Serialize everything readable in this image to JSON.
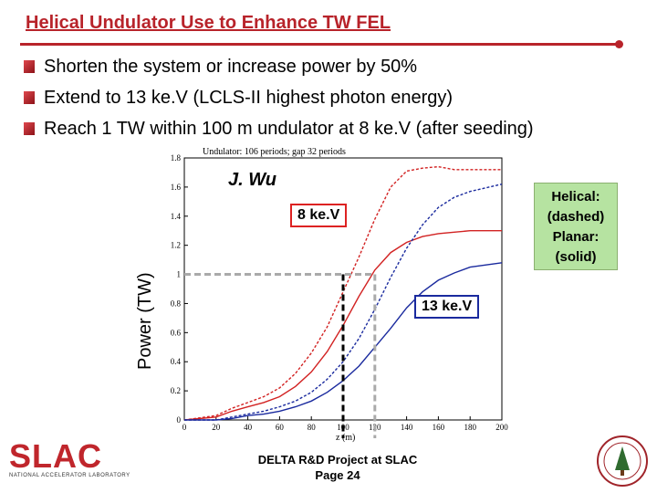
{
  "slide": {
    "title": "Helical Undulator Use to Enhance TW FEL",
    "bullets": [
      "Shorten the system or increase power by 50%",
      "Extend to 13 ke.V (LCLS-II highest photon energy)",
      "Reach 1 TW within 100 m undulator at 8 ke.V (after seeding)"
    ],
    "author": "J. Wu",
    "label_8kev": "8 ke.V",
    "label_13kev": "13 ke.V",
    "legend": [
      "Helical:",
      "(dashed)",
      "Planar:",
      "(solid)"
    ],
    "footer_line1": "DELTA R&D Project at SLAC",
    "footer_line2": "Page 24",
    "logo_text": "SLAC",
    "logo_subtext": "NATIONAL ACCELERATOR LABORATORY"
  },
  "colors": {
    "title": "#b8232a",
    "red": "#d22222",
    "blue": "#1a2a9e",
    "legend_bg": "#b6e3a1"
  },
  "chart_data": {
    "type": "line",
    "title": "Undulator: 106 periods; gap 32 periods",
    "xlabel": "z (m)",
    "ylabel": "Power (TW)",
    "xlim": [
      0,
      200
    ],
    "ylim": [
      0,
      1.8
    ],
    "xticks": [
      0,
      20,
      40,
      60,
      80,
      100,
      120,
      140,
      160,
      180,
      200
    ],
    "yticks": [
      0,
      0.2,
      0.4,
      0.6,
      0.8,
      1,
      1.2,
      1.4,
      1.6,
      1.8
    ],
    "series": [
      {
        "name": "8 keV helical",
        "color": "#d22222",
        "dash": true,
        "x": [
          0,
          20,
          30,
          40,
          50,
          60,
          70,
          80,
          90,
          100,
          110,
          120,
          130,
          140,
          150,
          160,
          170,
          180,
          200
        ],
        "y": [
          0,
          0.03,
          0.08,
          0.12,
          0.16,
          0.22,
          0.32,
          0.46,
          0.64,
          0.88,
          1.12,
          1.38,
          1.6,
          1.71,
          1.73,
          1.74,
          1.72,
          1.72,
          1.72
        ]
      },
      {
        "name": "8 keV planar",
        "color": "#d22222",
        "dash": false,
        "x": [
          0,
          20,
          30,
          40,
          50,
          60,
          70,
          80,
          90,
          100,
          110,
          120,
          130,
          140,
          150,
          160,
          170,
          180,
          200
        ],
        "y": [
          0,
          0.02,
          0.06,
          0.09,
          0.12,
          0.16,
          0.23,
          0.33,
          0.47,
          0.65,
          0.85,
          1.03,
          1.15,
          1.22,
          1.26,
          1.28,
          1.29,
          1.3,
          1.3
        ]
      },
      {
        "name": "13 keV helical",
        "color": "#1a2a9e",
        "dash": true,
        "x": [
          0,
          20,
          30,
          40,
          50,
          60,
          70,
          80,
          90,
          100,
          110,
          120,
          130,
          140,
          150,
          160,
          170,
          180,
          200
        ],
        "y": [
          0,
          0.0,
          0.02,
          0.04,
          0.06,
          0.09,
          0.13,
          0.19,
          0.28,
          0.4,
          0.56,
          0.76,
          0.98,
          1.18,
          1.34,
          1.46,
          1.53,
          1.57,
          1.62
        ]
      },
      {
        "name": "13 keV planar",
        "color": "#1a2a9e",
        "dash": false,
        "x": [
          0,
          20,
          30,
          40,
          50,
          60,
          70,
          80,
          90,
          100,
          110,
          120,
          130,
          140,
          150,
          160,
          170,
          180,
          200
        ],
        "y": [
          0,
          0.0,
          0.01,
          0.03,
          0.04,
          0.06,
          0.09,
          0.13,
          0.19,
          0.27,
          0.37,
          0.5,
          0.63,
          0.77,
          0.88,
          0.96,
          1.01,
          1.05,
          1.08
        ]
      }
    ],
    "markers": [
      {
        "name": "helical 1 TW",
        "x": 100,
        "y": 1.0,
        "color": "#000000"
      },
      {
        "name": "planar 1 TW",
        "x": 120,
        "y": 1.0,
        "color": "#aaaaaa"
      }
    ]
  }
}
